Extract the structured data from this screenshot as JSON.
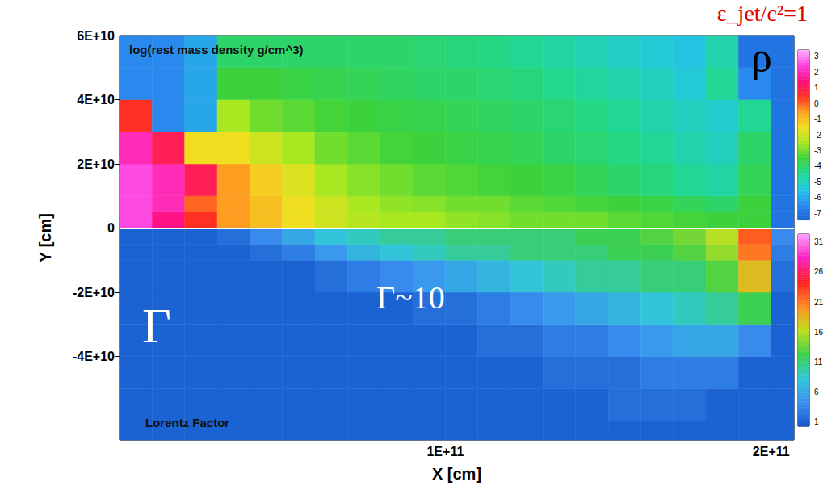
{
  "chart_data": {
    "type": "heatmap",
    "title": "ε_jet/c²=1",
    "x_label": "X [cm]",
    "y_label": "Y [cm]",
    "xlim": [
      0,
      207000000000.0
    ],
    "xticks": [
      {
        "value": 100000000000.0,
        "label": "1E+11"
      },
      {
        "value": 200000000000.0,
        "label": "2E+11"
      }
    ],
    "ylim": [
      -66000000000.0,
      60000000000.0
    ],
    "yticks": [
      {
        "value": -40000000000.0,
        "label": "-4E+10"
      },
      {
        "value": -20000000000.0,
        "label": "-2E+10"
      },
      0,
      {
        "value": 20000000000.0,
        "label": "2E+10"
      },
      {
        "value": 40000000000.0,
        "label": "4E+10"
      },
      {
        "value": 60000000000.0,
        "label": "6E+10"
      }
    ],
    "tick_labels": true,
    "annotations": [
      "ρ",
      "Γ",
      "Γ~10"
    ],
    "panels": [
      {
        "name": "log(rest mass density g/cm^3)",
        "colors": [
          "#1a63d6",
          "#2a8cf0",
          "#22c8e0",
          "#20d890",
          "#3cd23c",
          "#a8e820",
          "#f0e020",
          "#ffa020",
          "#ff3020",
          "#ff1080",
          "#ff40e0",
          "#ffb0ff"
        ],
        "x": [
          0,
          10000000000.0,
          20000000000.0,
          30000000000.0,
          40000000000.0,
          50000000000.0,
          60000000000.0,
          70000000000.0,
          80000000000.0,
          90000000000.0,
          100000000000.0,
          110000000000.0,
          120000000000.0,
          130000000000.0,
          140000000000.0,
          150000000000.0,
          160000000000.0,
          170000000000.0,
          180000000000.0,
          190000000000.0,
          200000000000.0,
          210000000000.0
        ],
        "y": [
          0,
          5000000000.0,
          10000000000.0,
          20000000000.0,
          30000000000.0,
          40000000000.0,
          50000000000.0,
          60000000000.0
        ],
        "cells": [
          [
            2.5,
            1.5,
            0.5,
            -0.5,
            -1,
            -1.5,
            -2,
            -2.3,
            -2.5,
            -2.5,
            -2.7,
            -2.8,
            -3,
            -3,
            -3,
            -3.2,
            -3.3,
            -3.4,
            -3.5,
            -3.5,
            -7
          ],
          [
            2.5,
            2,
            0,
            -0.5,
            -1,
            -1.5,
            -2,
            -2.5,
            -2.7,
            -2.8,
            -3,
            -3,
            -3.2,
            -3.3,
            -3.4,
            -3.5,
            -3.6,
            -3.8,
            -4,
            -3.5,
            -7
          ],
          [
            2.5,
            2,
            1,
            -0.5,
            -1.2,
            -1.8,
            -2.5,
            -2.8,
            -3,
            -3.2,
            -3.3,
            -3.4,
            -3.5,
            -3.6,
            -3.8,
            -4,
            -4.2,
            -4.5,
            -4.7,
            -3.8,
            -7
          ],
          [
            2,
            1,
            -1.5,
            -1.5,
            -2,
            -2.5,
            -3,
            -3.2,
            -3.4,
            -3.5,
            -3.6,
            -3.7,
            -3.8,
            -4,
            -4.1,
            -4.3,
            -4.5,
            -4.8,
            -5,
            -4,
            -7
          ],
          [
            0.5,
            -6.5,
            -6,
            -2.5,
            -3,
            -3.2,
            -3.4,
            -3.5,
            -3.6,
            -3.7,
            -3.8,
            -3.9,
            -4,
            -4.1,
            -4.3,
            -4.5,
            -4.8,
            -5,
            -5.2,
            -4.5,
            -7
          ],
          [
            -6.5,
            -6.5,
            -6,
            -3.5,
            -3.5,
            -3.6,
            -3.7,
            -3.8,
            -3.9,
            -4,
            -4,
            -4.1,
            -4.2,
            -4.4,
            -4.6,
            -4.8,
            -5,
            -5.3,
            -4.5,
            -6.5,
            -7
          ],
          [
            -6.5,
            -6.5,
            -6,
            -4,
            -4,
            -4,
            -4,
            -4,
            -4,
            -4.1,
            -4.2,
            -4.3,
            -4.5,
            -4.7,
            -4.9,
            -5.1,
            -5.3,
            -5.5,
            -4.8,
            -7,
            -7
          ]
        ],
        "colorbar": {
          "range": [
            -7.4,
            3.4
          ],
          "ticks": [
            3,
            2,
            1,
            0,
            -1,
            -2,
            -3,
            -4,
            -5,
            -6,
            -7
          ]
        }
      },
      {
        "name": "Lorentz Factor",
        "colors": [
          "#1458cc",
          "#3b8ff0",
          "#30c8d8",
          "#3cd048",
          "#c0e020",
          "#ff8a20",
          "#ff2020",
          "#ff20c0",
          "#ffa0ff"
        ],
        "x": [
          0,
          10000000000.0,
          20000000000.0,
          30000000000.0,
          40000000000.0,
          50000000000.0,
          60000000000.0,
          70000000000.0,
          80000000000.0,
          90000000000.0,
          100000000000.0,
          110000000000.0,
          120000000000.0,
          130000000000.0,
          140000000000.0,
          150000000000.0,
          160000000000.0,
          170000000000.0,
          180000000000.0,
          190000000000.0,
          200000000000.0,
          210000000000.0
        ],
        "y": [
          -66000000000.0,
          -60000000000.0,
          -50000000000.0,
          -40000000000.0,
          -30000000000.0,
          -20000000000.0,
          -10000000000.0,
          -5000000000.0,
          0
        ],
        "cells": [
          [
            1,
            1,
            1,
            1,
            1,
            1,
            1,
            1,
            1,
            1,
            1,
            1,
            1,
            1,
            1,
            1,
            1,
            1,
            1,
            1,
            1
          ],
          [
            1,
            1,
            1,
            1,
            1,
            1,
            1,
            1,
            1,
            1,
            1,
            1,
            1,
            1,
            1,
            2,
            2,
            2,
            1,
            1,
            1
          ],
          [
            1,
            1,
            1,
            1,
            1,
            1,
            1,
            1,
            1,
            1,
            1,
            1,
            1,
            2,
            2,
            2,
            3,
            3,
            3,
            1,
            1
          ],
          [
            1,
            1,
            1,
            1,
            1,
            1,
            1,
            1,
            1,
            1,
            1,
            2,
            2,
            3,
            3,
            4,
            5,
            6,
            6,
            4,
            1
          ],
          [
            1,
            1,
            1,
            1,
            1,
            1,
            1,
            1,
            1,
            2,
            2,
            3,
            4,
            5,
            6,
            7,
            8,
            9,
            10,
            12,
            1
          ],
          [
            1,
            1,
            1,
            1,
            1,
            1,
            2,
            3,
            4,
            5,
            6,
            7,
            8,
            9,
            10,
            10,
            11,
            11,
            13,
            18,
            2
          ],
          [
            1,
            1,
            1,
            1,
            2,
            3,
            5,
            7,
            8,
            9,
            10,
            10,
            11,
            11,
            11,
            12,
            12,
            13,
            15,
            21,
            3
          ],
          [
            1,
            1,
            1,
            2,
            4,
            6,
            8,
            9,
            10,
            10,
            11,
            11,
            11,
            11,
            12,
            12,
            13,
            14,
            16,
            22,
            4
          ]
        ],
        "colorbar": {
          "range": [
            0.3,
            32.3
          ],
          "ticks": [
            31,
            26,
            21,
            16,
            11,
            6,
            1
          ]
        }
      }
    ]
  }
}
